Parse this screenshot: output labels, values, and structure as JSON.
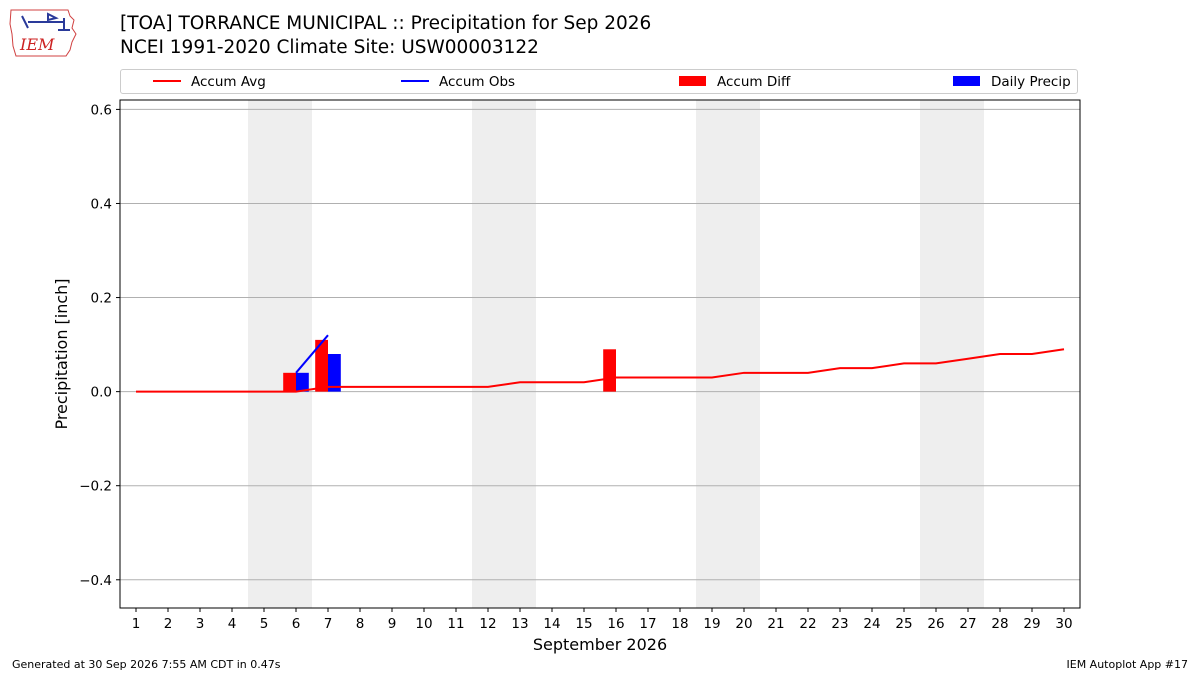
{
  "logo": {
    "text": "IEM"
  },
  "header": {
    "title_line1": "[TOA] TORRANCE MUNICIPAL :: Precipitation for Sep 2026",
    "title_line2": "NCEI 1991-2020 Climate Site: USW00003122"
  },
  "legend": {
    "items": [
      {
        "label": "Accum Avg",
        "color": "#ff0000",
        "kind": "line"
      },
      {
        "label": "Accum Obs",
        "color": "#0000ff",
        "kind": "line"
      },
      {
        "label": "Accum Diff",
        "color": "#ff0000",
        "kind": "box"
      },
      {
        "label": "Daily Precip",
        "color": "#0000ff",
        "kind": "box"
      }
    ]
  },
  "chart_data": {
    "type": "bar",
    "xlabel": "September 2026",
    "ylabel": "Precipitation [inch]",
    "x_ticks": [
      1,
      2,
      3,
      4,
      5,
      6,
      7,
      8,
      9,
      10,
      11,
      12,
      13,
      14,
      15,
      16,
      17,
      18,
      19,
      20,
      21,
      22,
      23,
      24,
      25,
      26,
      27,
      28,
      29,
      30
    ],
    "y_ticks": [
      -0.4,
      -0.2,
      0.0,
      0.2,
      0.4,
      0.6
    ],
    "y_tick_labels": [
      "−0.4",
      "−0.2",
      "0.0",
      "0.2",
      "0.4",
      "0.6"
    ],
    "xlim": [
      0.5,
      30.5
    ],
    "ylim": [
      -0.46,
      0.62
    ],
    "grid": "horizontal",
    "legend_position": "top",
    "weekend_shading": [
      [
        4.5,
        6.5
      ],
      [
        11.5,
        13.5
      ],
      [
        18.5,
        20.5
      ],
      [
        25.5,
        27.5
      ]
    ],
    "series": [
      {
        "name": "Accum Avg",
        "type": "line",
        "color": "#ff0000",
        "x": [
          1,
          2,
          3,
          4,
          5,
          6,
          7,
          8,
          9,
          10,
          11,
          12,
          13,
          14,
          15,
          16,
          17,
          18,
          19,
          20,
          21,
          22,
          23,
          24,
          25,
          26,
          27,
          28,
          29,
          30
        ],
        "values": [
          0.0,
          0.0,
          0.0,
          0.0,
          0.0,
          0.0,
          0.01,
          0.01,
          0.01,
          0.01,
          0.01,
          0.01,
          0.02,
          0.02,
          0.02,
          0.03,
          0.03,
          0.03,
          0.03,
          0.04,
          0.04,
          0.04,
          0.05,
          0.05,
          0.06,
          0.06,
          0.07,
          0.08,
          0.08,
          0.09
        ]
      },
      {
        "name": "Accum Obs",
        "type": "line",
        "color": "#0000ff",
        "x": [
          6,
          7
        ],
        "values": [
          0.04,
          0.12
        ]
      },
      {
        "name": "Accum Diff",
        "type": "bar",
        "color": "#ff0000",
        "x": [
          6,
          7,
          16
        ],
        "values": [
          0.04,
          0.11,
          0.09
        ]
      },
      {
        "name": "Daily Precip",
        "type": "bar",
        "color": "#0000ff",
        "x": [
          6,
          7
        ],
        "values": [
          0.04,
          0.08
        ]
      }
    ]
  },
  "footer": {
    "left": "Generated at 30 Sep 2026 7:55 AM CDT in 0.47s",
    "right": "IEM Autoplot App #17"
  }
}
